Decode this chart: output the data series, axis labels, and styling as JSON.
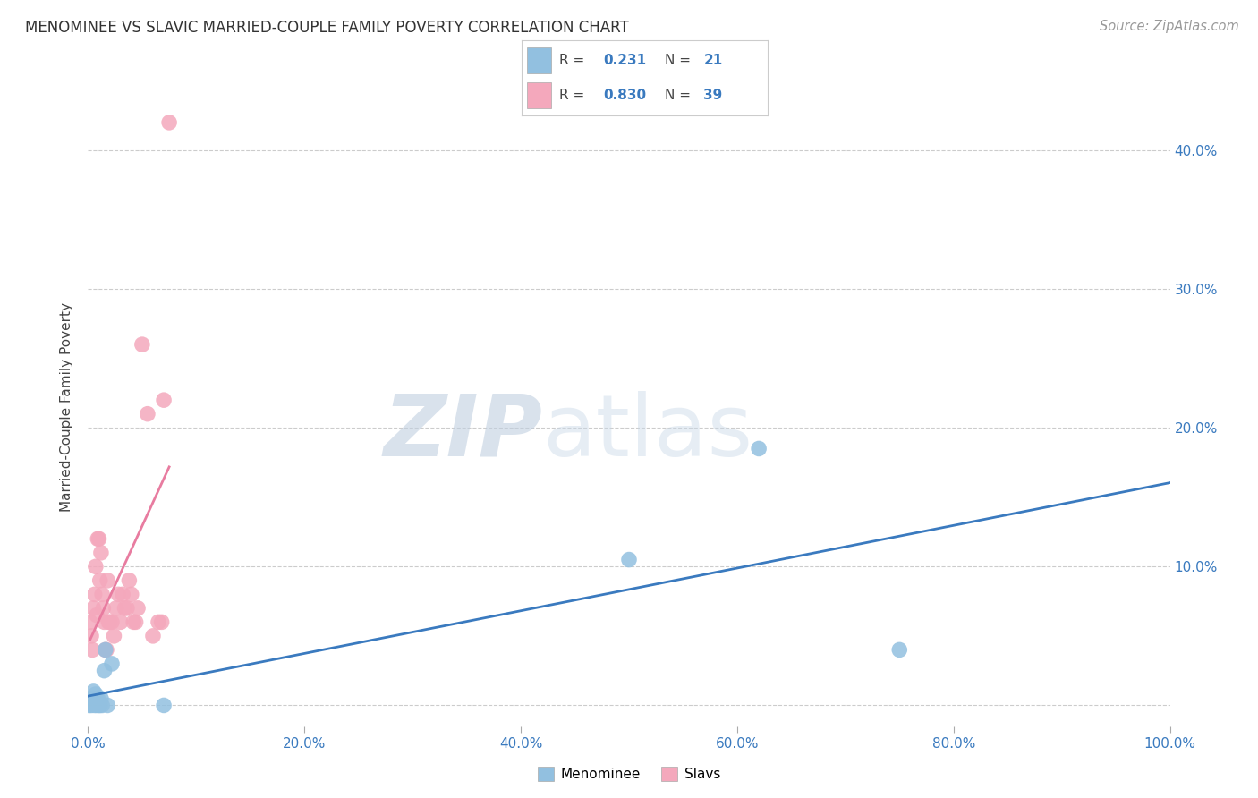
{
  "title": "MENOMINEE VS SLAVIC MARRIED-COUPLE FAMILY POVERTY CORRELATION CHART",
  "source": "Source: ZipAtlas.com",
  "ylabel": "Married-Couple Family Poverty",
  "legend_blue_R": "0.231",
  "legend_blue_N": "21",
  "legend_pink_R": "0.830",
  "legend_pink_N": "39",
  "blue_color": "#92c0e0",
  "pink_color": "#f4a8bc",
  "blue_line_color": "#3a7abf",
  "pink_line_color": "#e87ca0",
  "xmin": 0.0,
  "xmax": 1.0,
  "ymin": -0.015,
  "ymax": 0.445,
  "menominee_x": [
    0.001,
    0.002,
    0.003,
    0.004,
    0.005,
    0.006,
    0.007,
    0.008,
    0.009,
    0.01,
    0.011,
    0.012,
    0.013,
    0.015,
    0.016,
    0.018,
    0.022,
    0.07,
    0.5,
    0.62,
    0.75
  ],
  "menominee_y": [
    0.0,
    0.005,
    0.0,
    0.005,
    0.01,
    0.0,
    0.008,
    0.0,
    0.005,
    0.0,
    0.0,
    0.005,
    0.0,
    0.025,
    0.04,
    0.0,
    0.03,
    0.0,
    0.105,
    0.185,
    0.04
  ],
  "slavs_x": [
    0.002,
    0.003,
    0.004,
    0.005,
    0.006,
    0.007,
    0.008,
    0.009,
    0.01,
    0.011,
    0.012,
    0.013,
    0.014,
    0.015,
    0.016,
    0.017,
    0.018,
    0.019,
    0.02,
    0.022,
    0.024,
    0.026,
    0.028,
    0.03,
    0.032,
    0.034,
    0.036,
    0.038,
    0.04,
    0.042,
    0.044,
    0.046,
    0.05,
    0.055,
    0.06,
    0.065,
    0.068,
    0.07,
    0.075
  ],
  "slavs_y": [
    0.06,
    0.05,
    0.04,
    0.07,
    0.08,
    0.1,
    0.065,
    0.12,
    0.12,
    0.09,
    0.11,
    0.08,
    0.07,
    0.06,
    0.04,
    0.04,
    0.09,
    0.06,
    0.06,
    0.06,
    0.05,
    0.07,
    0.08,
    0.06,
    0.08,
    0.07,
    0.07,
    0.09,
    0.08,
    0.06,
    0.06,
    0.07,
    0.26,
    0.21,
    0.05,
    0.06,
    0.06,
    0.22,
    0.42
  ],
  "watermark_zip": "ZIP",
  "watermark_atlas": "atlas",
  "background_color": "#ffffff",
  "grid_color": "#cccccc"
}
